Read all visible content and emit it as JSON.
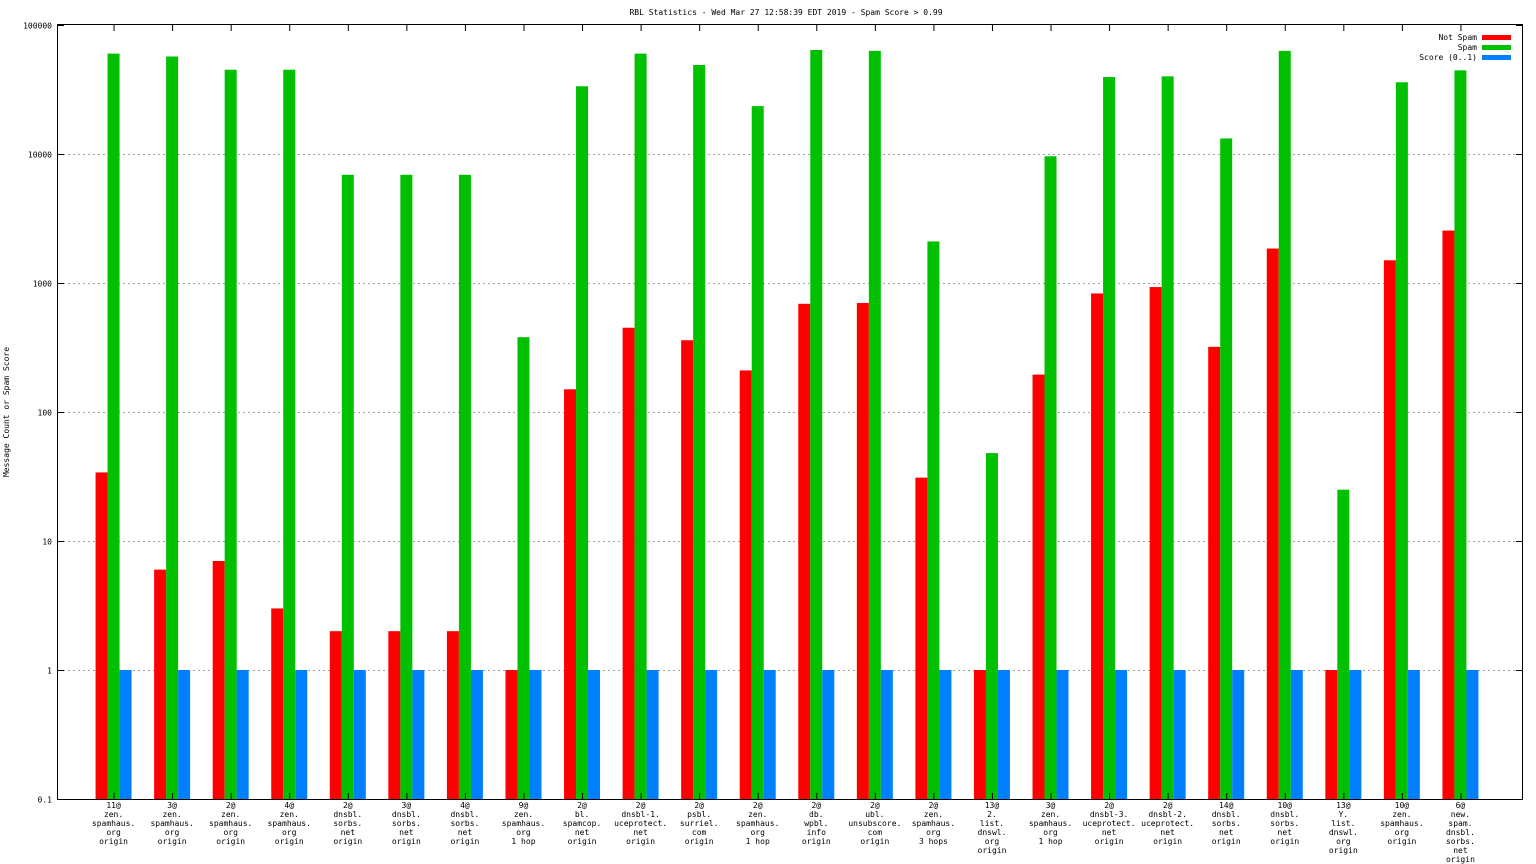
{
  "chart_data": {
    "type": "bar",
    "title": "RBL Statistics - Wed Mar 27 12:58:39 EDT 2019 - Spam Score > 0.99",
    "xlabel": "",
    "ylabel": "Message Count or Spam Score",
    "yscale": "log",
    "ylim": [
      0.1,
      100000
    ],
    "yticks": [
      "0.1",
      "1",
      "10",
      "100",
      "1000",
      "10000",
      "100000"
    ],
    "ytick_values": [
      0.1,
      1,
      10,
      100,
      1000,
      10000,
      100000
    ],
    "grid": true,
    "legend_position": "top-right",
    "categories": [
      [
        "11@",
        "zen.",
        "spamhaus.",
        "org",
        "origin"
      ],
      [
        "3@",
        "zen.",
        "spamhaus.",
        "org",
        "origin"
      ],
      [
        "2@",
        "zen.",
        "spamhaus.",
        "org",
        "origin"
      ],
      [
        "4@",
        "zen.",
        "spamhaus.",
        "org",
        "origin"
      ],
      [
        "2@",
        "dnsbl.",
        "sorbs.",
        "net",
        "origin"
      ],
      [
        "3@",
        "dnsbl.",
        "sorbs.",
        "net",
        "origin"
      ],
      [
        "4@",
        "dnsbl.",
        "sorbs.",
        "net",
        "origin"
      ],
      [
        "9@",
        "zen.",
        "spamhaus.",
        "org",
        "1 hop"
      ],
      [
        "2@",
        "bl.",
        "spamcop.",
        "net",
        "origin"
      ],
      [
        "2@",
        "dnsbl-1.",
        "uceprotect.",
        "net",
        "origin"
      ],
      [
        "2@",
        "psbl.",
        "surriel.",
        "com",
        "origin"
      ],
      [
        "2@",
        "zen.",
        "spamhaus.",
        "org",
        "1 hop"
      ],
      [
        "2@",
        "db.",
        "wpbl.",
        "info",
        "origin"
      ],
      [
        "2@",
        "ubl.",
        "unsubscore.",
        "com",
        "origin"
      ],
      [
        "2@",
        "zen.",
        "spamhaus.",
        "org",
        "3 hops"
      ],
      [
        "13@",
        "2.",
        "list.",
        "dnswl.",
        "org",
        "origin"
      ],
      [
        "3@",
        "zen.",
        "spamhaus.",
        "org",
        "1 hop"
      ],
      [
        "2@",
        "dnsbl-3.",
        "uceprotect.",
        "net",
        "origin"
      ],
      [
        "2@",
        "dnsbl-2.",
        "uceprotect.",
        "net",
        "origin"
      ],
      [
        "14@",
        "dnsbl.",
        "sorbs.",
        "net",
        "origin"
      ],
      [
        "10@",
        "dnsbl.",
        "sorbs.",
        "net",
        "origin"
      ],
      [
        "13@",
        "Y.",
        "list.",
        "dnswl.",
        "org",
        "origin"
      ],
      [
        "10@",
        "zen.",
        "spamhaus.",
        "org",
        "origin"
      ],
      [
        "6@",
        "new.",
        "spam.",
        "dnsbl.",
        "sorbs.",
        "net",
        "origin"
      ]
    ],
    "series": [
      {
        "name": "Not Spam",
        "color": "#ff0000",
        "values": [
          34,
          6,
          7,
          3,
          2,
          2,
          2,
          1,
          150,
          450,
          360,
          210,
          690,
          700,
          31,
          1,
          195,
          830,
          930,
          320,
          1850,
          1,
          1500,
          2550
        ]
      },
      {
        "name": "Spam",
        "color": "#00c000",
        "values": [
          60000,
          57000,
          45000,
          45000,
          6900,
          6900,
          6900,
          380,
          33500,
          60000,
          49000,
          23500,
          64000,
          63000,
          2100,
          48,
          9600,
          39500,
          40000,
          13200,
          63000,
          25,
          36000,
          44500
        ]
      },
      {
        "name": "Score (0..1)",
        "color": "#0080ff",
        "values": [
          1,
          1,
          1,
          1,
          1,
          1,
          1,
          1,
          1,
          1,
          1,
          1,
          1,
          1,
          1,
          1,
          1,
          1,
          1,
          1,
          1,
          1,
          1,
          1
        ]
      }
    ]
  }
}
